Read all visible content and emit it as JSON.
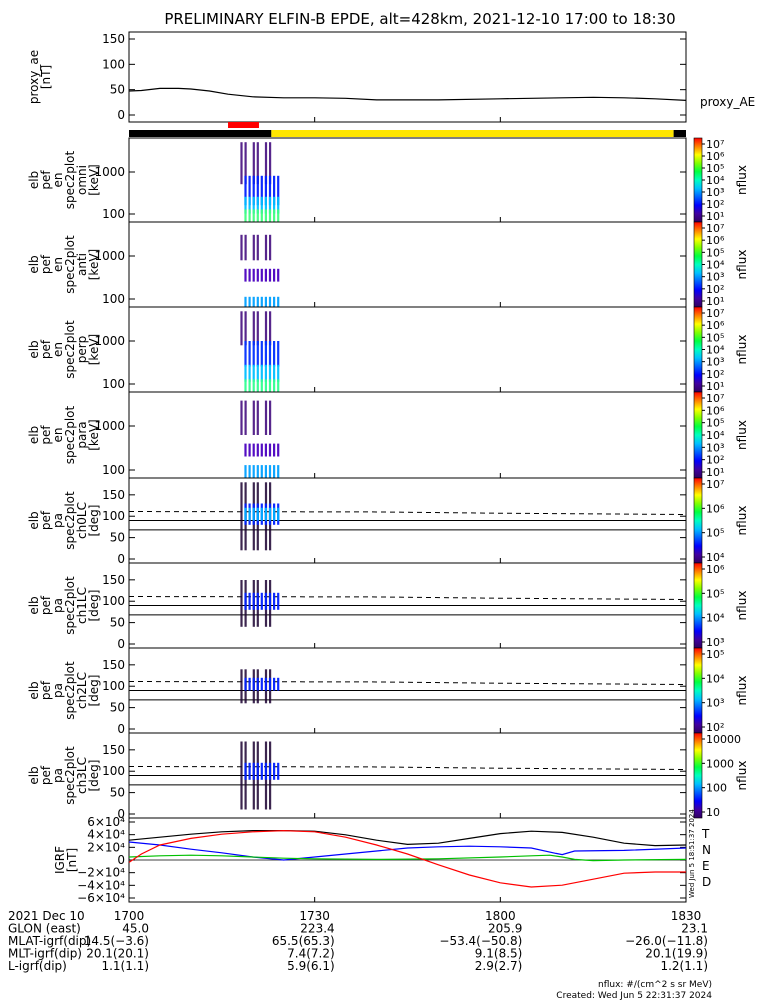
{
  "title": "PRELIMINARY ELFIN-B EPDE, alt=428km, 2021-12-10 17:00 to 18:30",
  "colors": {
    "ephemeris_black": "#000000",
    "ephemeris_yellow": "#ffe600",
    "science_red": "#ff0000",
    "igrf_T": "#000000",
    "igrf_N": "#0000ff",
    "igrf_E": "#00c000",
    "igrf_D": "#ff0000"
  },
  "chart_data": [
    {
      "type": "line",
      "id": "proxy_ae",
      "ylabel": [
        "proxy_ae",
        "[nT]"
      ],
      "ylim": [
        0,
        150
      ],
      "yticks": [
        "150",
        "100",
        "50",
        "0"
      ],
      "series": [
        {
          "name": "proxy_AE",
          "x": [
            1700,
            1702,
            1705,
            1708,
            1710,
            1713,
            1716,
            1720,
            1725,
            1730,
            1735,
            1740,
            1750,
            1800,
            1810,
            1815,
            1820,
            1825,
            1830
          ],
          "y": [
            48,
            49,
            53,
            53,
            52,
            48,
            42,
            37,
            35,
            35,
            34,
            31,
            31,
            33,
            35,
            36,
            35,
            33,
            30
          ]
        }
      ]
    },
    {
      "type": "heatmap",
      "id": "en_omni",
      "ylabel": [
        "elb",
        "pef",
        "en",
        "spec2plot",
        "omni",
        "[keV]"
      ],
      "yscale": "log",
      "yticks": [
        "1000",
        "100"
      ],
      "colorbar": {
        "label": "nflux",
        "ticks": [
          "10⁷",
          "10⁶",
          "10⁵",
          "10⁴",
          "10³",
          "10²",
          "10¹"
        ]
      }
    },
    {
      "type": "heatmap",
      "id": "en_anti",
      "ylabel": [
        "elb",
        "pef",
        "en",
        "spec2plot",
        "anti",
        "[keV]"
      ],
      "yscale": "log",
      "yticks": [
        "1000",
        "100"
      ],
      "colorbar": {
        "label": "nflux",
        "ticks": [
          "10⁷",
          "10⁶",
          "10⁵",
          "10⁴",
          "10³",
          "10²",
          "10¹"
        ]
      }
    },
    {
      "type": "heatmap",
      "id": "en_perp",
      "ylabel": [
        "elb",
        "pef",
        "en",
        "spec2plot",
        "perp",
        "[keV]"
      ],
      "yscale": "log",
      "yticks": [
        "1000",
        "100"
      ],
      "colorbar": {
        "label": "nflux",
        "ticks": [
          "10⁷",
          "10⁶",
          "10⁵",
          "10⁴",
          "10³",
          "10²",
          "10¹"
        ]
      }
    },
    {
      "type": "heatmap",
      "id": "en_para",
      "ylabel": [
        "elb",
        "pef",
        "en",
        "spec2plot",
        "para",
        "[keV]"
      ],
      "yscale": "log",
      "yticks": [
        "1000",
        "100"
      ],
      "colorbar": {
        "label": "nflux",
        "ticks": [
          "10⁷",
          "10⁶",
          "10⁵",
          "10⁴",
          "10³",
          "10²",
          "10¹"
        ]
      }
    },
    {
      "type": "heatmap",
      "id": "pa_ch0",
      "ylabel": [
        "elb",
        "pef",
        "pa",
        "spec2plot",
        "ch0LC",
        "[deg]"
      ],
      "ylim": [
        0,
        180
      ],
      "yticks": [
        "150",
        "100",
        "50",
        "0"
      ],
      "colorbar": {
        "label": "nflux",
        "ticks": [
          "10⁷",
          "10⁶",
          "10⁵",
          "10⁴"
        ]
      }
    },
    {
      "type": "heatmap",
      "id": "pa_ch1",
      "ylabel": [
        "elb",
        "pef",
        "pa",
        "spec2plot",
        "ch1LC",
        "[deg]"
      ],
      "ylim": [
        0,
        180
      ],
      "yticks": [
        "150",
        "100",
        "50",
        "0"
      ],
      "colorbar": {
        "label": "nflux",
        "ticks": [
          "10⁶",
          "10⁵",
          "10⁴",
          "10³"
        ]
      }
    },
    {
      "type": "heatmap",
      "id": "pa_ch2",
      "ylabel": [
        "elb",
        "pef",
        "pa",
        "spec2plot",
        "ch2LC",
        "[deg]"
      ],
      "ylim": [
        0,
        180
      ],
      "yticks": [
        "150",
        "100",
        "50",
        "0"
      ],
      "colorbar": {
        "label": "nflux",
        "ticks": [
          "10⁵",
          "10⁴",
          "10³",
          "10²"
        ]
      }
    },
    {
      "type": "heatmap",
      "id": "pa_ch3",
      "ylabel": [
        "elb",
        "pef",
        "pa",
        "spec2plot",
        "ch3LC",
        "[deg]"
      ],
      "ylim": [
        0,
        180
      ],
      "yticks": [
        "150",
        "100",
        "50",
        "0"
      ],
      "colorbar": {
        "label": "nflux",
        "ticks": [
          "10000",
          "1000",
          "100",
          "10"
        ]
      }
    },
    {
      "type": "line",
      "id": "igrf",
      "ylabel": [
        "IGRF",
        "[nT]"
      ],
      "ylim": [
        -60000,
        60000
      ],
      "yticks": [
        "6×10⁴",
        "4×10⁴",
        "2×10⁴",
        "0",
        "−2×10⁴",
        "−4×10⁴",
        "−6×10⁴"
      ],
      "side_note": "Wed Jun  5 18:51:37 2024",
      "series": [
        {
          "name": "T",
          "x": [
            1700,
            1705,
            1710,
            1715,
            1720,
            1725,
            1730,
            1735,
            1740,
            1745,
            1750,
            1755,
            1800,
            1805,
            1810,
            1815,
            1820,
            1825,
            1830
          ],
          "y": [
            33000,
            38000,
            43000,
            47000,
            49000,
            49000,
            48000,
            42000,
            33000,
            26000,
            28000,
            36000,
            44000,
            48000,
            46000,
            38000,
            28000,
            24000,
            25000
          ]
        },
        {
          "name": "N",
          "x": [
            1700,
            1705,
            1710,
            1715,
            1720,
            1725,
            1730,
            1735,
            1740,
            1745,
            1750,
            1755,
            1800,
            1805,
            1809,
            1810,
            1812,
            1820,
            1830
          ],
          "y": [
            30000,
            25000,
            18000,
            12000,
            5000,
            0,
            5000,
            10000,
            15000,
            20000,
            22000,
            23000,
            22000,
            20000,
            11000,
            9000,
            15000,
            16000,
            20000
          ]
        },
        {
          "name": "E",
          "x": [
            1700,
            1705,
            1710,
            1715,
            1720,
            1725,
            1730,
            1740,
            1750,
            1800,
            1805,
            1808,
            1810,
            1812,
            1815,
            1820,
            1830
          ],
          "y": [
            5000,
            7000,
            8000,
            7000,
            5000,
            3000,
            2000,
            1000,
            2000,
            5000,
            7000,
            8000,
            5000,
            1000,
            -1000,
            0,
            1000
          ]
        },
        {
          "name": "D",
          "x": [
            1700,
            1702,
            1705,
            1710,
            1715,
            1720,
            1725,
            1730,
            1735,
            1740,
            1745,
            1750,
            1755,
            1800,
            1805,
            1810,
            1815,
            1820,
            1825,
            1830
          ],
          "y": [
            -4000,
            10000,
            25000,
            36000,
            43000,
            47000,
            49000,
            47000,
            38000,
            25000,
            10000,
            -8000,
            -25000,
            -38000,
            -45000,
            -42000,
            -32000,
            -22000,
            -20000,
            -20000
          ]
        }
      ]
    }
  ],
  "time_axis": {
    "xlim": [
      1700,
      1830
    ],
    "ticks": [
      1700,
      1730,
      1800,
      1830
    ],
    "tick_labels": [
      "1700",
      "1730",
      "1800",
      "1830"
    ]
  },
  "footer": {
    "rows": [
      {
        "label": "2021 Dec 10",
        "values": [
          "1700",
          "1730",
          "1800",
          "1830"
        ]
      },
      {
        "label": "GLON (east)",
        "values": [
          "45.0",
          "223.4",
          "205.9",
          "23.1"
        ]
      },
      {
        "label": "MLAT-igrf(dip)",
        "values": [
          "14.5(−3.6)",
          "65.5(65.3)",
          "−53.4(−50.8)",
          "−26.0(−11.8)"
        ]
      },
      {
        "label": "MLT-igrf(dip)",
        "values": [
          "20.1(20.1)",
          "7.4(7.2)",
          "9.1(8.5)",
          "20.1(19.9)"
        ]
      },
      {
        "label": "L-igrf(dip)",
        "values": [
          "1.1(1.1)",
          "5.9(6.1)",
          "2.9(2.7)",
          "1.2(1.1)"
        ]
      }
    ],
    "units_note": "nflux: #/(cm^2 s sr MeV)",
    "created": "Created: Wed Jun  5 22:31:37 2024"
  }
}
